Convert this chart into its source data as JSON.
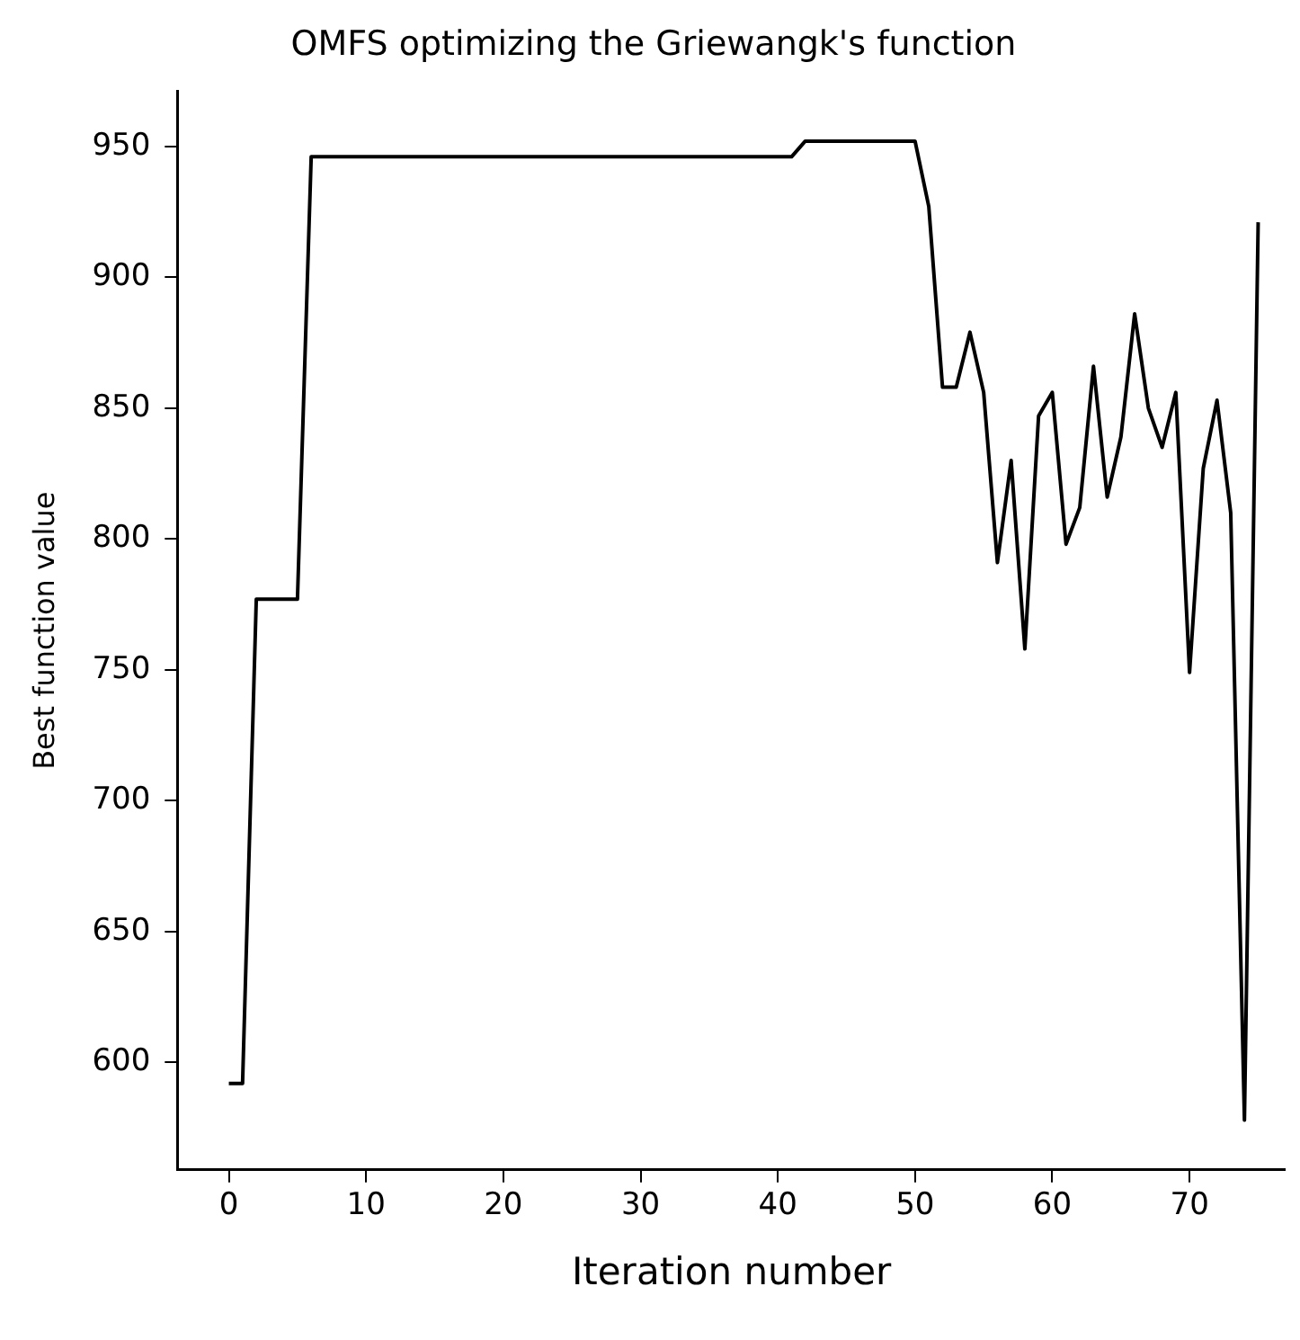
{
  "chart_data": {
    "type": "line",
    "title": "OMFS optimizing the Griewangk's function",
    "xlabel": "Iteration number",
    "ylabel": "Best function value",
    "x": [
      0,
      1,
      2,
      3,
      4,
      5,
      6,
      7,
      41,
      42,
      49,
      50,
      51,
      52,
      53,
      54,
      55,
      56,
      57,
      58,
      59,
      60,
      61,
      62,
      63,
      64,
      65,
      66,
      67,
      68,
      69,
      70,
      71,
      72,
      73,
      74,
      75
    ],
    "series": [
      {
        "color": "#000000",
        "values": [
          592,
          592,
          777,
          777,
          777,
          777,
          946,
          946,
          946,
          952,
          952,
          952,
          927,
          858,
          858,
          879,
          856,
          791,
          830,
          758,
          847,
          856,
          798,
          812,
          866,
          816,
          839,
          886,
          850,
          835,
          856,
          749,
          827,
          853,
          810,
          578,
          921
        ]
      }
    ],
    "xlim": [
      -3.75,
      77
    ],
    "xticks": [
      0,
      10,
      20,
      30,
      40,
      50,
      60,
      70
    ],
    "ylim": [
      559,
      971
    ],
    "yticks": [
      600,
      650,
      700,
      750,
      800,
      850,
      900,
      950
    ],
    "grid": false,
    "legend": false,
    "marker": "none",
    "line_style": "solid"
  }
}
